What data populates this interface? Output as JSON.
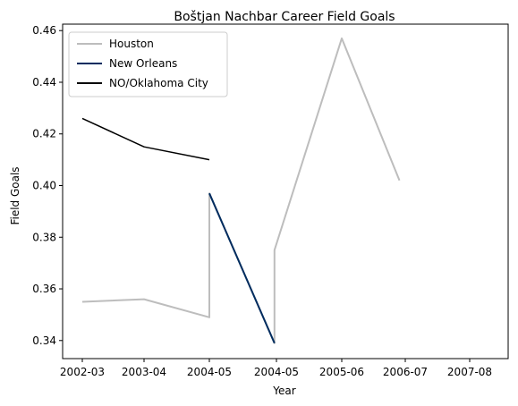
{
  "chart_data": {
    "type": "line",
    "title": "Boštjan Nachbar Career Field Goals",
    "xlabel": "Year",
    "ylabel": "Field Goals",
    "xlim": [
      0.0,
      2.07
    ],
    "ylim": [
      0.333,
      0.4625
    ],
    "grid": false,
    "legend_position": "upper-left",
    "x_ticks": [
      {
        "label": "2002-03",
        "value": 0.0
      },
      {
        "label": "2003-04",
        "value": 0.33
      },
      {
        "label": "2004-05",
        "value": 0.66
      },
      {
        "label": "2004-05",
        "value": 1.0
      },
      {
        "label": "2005-06",
        "value": 1.33
      },
      {
        "label": "2006-07",
        "value": 1.66
      },
      {
        "label": "2007-08",
        "value": 2.0
      }
    ],
    "y_ticks": [
      "0.34",
      "0.36",
      "0.38",
      "0.40",
      "0.42",
      "0.44",
      "0.46"
    ],
    "y_tick_values": [
      0.34,
      0.36,
      0.38,
      0.4,
      0.42,
      0.44,
      0.46
    ],
    "series": [
      {
        "name": "Houston",
        "color": "#bdbdbd",
        "line_width": 2,
        "points": [
          {
            "x": 0.0,
            "y": 0.355
          },
          {
            "x": 0.33,
            "y": 0.356
          },
          {
            "x": 0.66,
            "y": 0.349
          },
          {
            "x": 0.66,
            "y": 0.397
          },
          {
            "x": 1.0,
            "y": 0.339
          },
          {
            "x": 1.0,
            "y": 0.375
          },
          {
            "x": 1.33,
            "y": 0.457
          },
          {
            "x": 1.66,
            "y": 0.402
          }
        ],
        "x_positions_note_removed": true
      },
      {
        "name": "New Orleans",
        "color": "#002c5f",
        "line_width": 2,
        "points": [
          {
            "x": 0.66,
            "y": 0.397
          },
          {
            "x": 1.0,
            "y": 0.339
          }
        ]
      },
      {
        "name": "NO/Oklahoma City",
        "color": "#000000",
        "line_width": 1.5,
        "points": [
          {
            "x": 0.0,
            "y": 0.426
          },
          {
            "x": 0.33,
            "y": 0.415
          },
          {
            "x": 0.66,
            "y": 0.41
          }
        ]
      }
    ]
  }
}
